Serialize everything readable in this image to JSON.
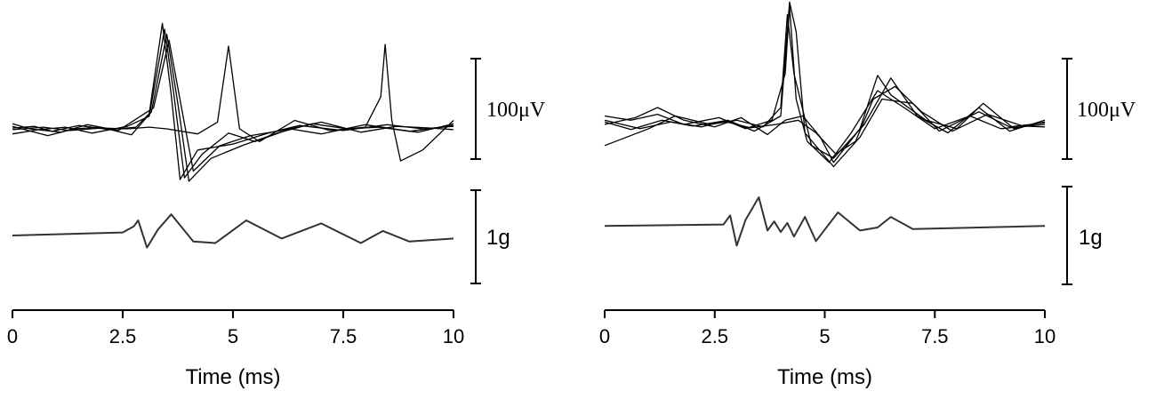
{
  "chart_data": [
    {
      "type": "line",
      "panel": "left",
      "xlabel": "Time (ms)",
      "xlim": [
        0,
        10
      ],
      "xticks": [
        "0",
        "2.5",
        "5",
        "7.5",
        "10"
      ],
      "scale_bars": {
        "voltage": "100μV",
        "accel": "1g"
      },
      "voltage_traces": [
        {
          "points": [
            [
              0,
              1
            ],
            [
              0.5,
              3
            ],
            [
              0.9,
              -3
            ],
            [
              1.5,
              4
            ],
            [
              2.2,
              -1
            ],
            [
              2.8,
              2
            ],
            [
              3.1,
              18
            ],
            [
              3.4,
              125
            ],
            [
              3.6,
              40
            ],
            [
              3.8,
              -60
            ],
            [
              4.2,
              -25
            ],
            [
              5,
              -18
            ],
            [
              5.8,
              -5
            ],
            [
              6.5,
              4
            ],
            [
              7.5,
              -2
            ],
            [
              8.5,
              5
            ],
            [
              9.3,
              0
            ],
            [
              10,
              3
            ]
          ]
        },
        {
          "points": [
            [
              0,
              -6
            ],
            [
              0.6,
              -1
            ],
            [
              1.2,
              2
            ],
            [
              1.8,
              -5
            ],
            [
              2.6,
              3
            ],
            [
              3.1,
              15
            ],
            [
              3.45,
              118
            ],
            [
              3.65,
              45
            ],
            [
              3.9,
              -58
            ],
            [
              4.3,
              -30
            ],
            [
              4.9,
              -5
            ],
            [
              5.5,
              -15
            ],
            [
              6.3,
              0
            ],
            [
              7,
              -6
            ],
            [
              8,
              5
            ],
            [
              9,
              -3
            ],
            [
              10,
              4
            ]
          ]
        },
        {
          "points": [
            [
              0,
              3
            ],
            [
              0.8,
              -8
            ],
            [
              1.4,
              0
            ],
            [
              2,
              2
            ],
            [
              2.7,
              -7
            ],
            [
              3.15,
              20
            ],
            [
              3.5,
              112
            ],
            [
              3.75,
              30
            ],
            [
              4,
              -62
            ],
            [
              4.5,
              -35
            ],
            [
              5.2,
              -20
            ],
            [
              6,
              -5
            ],
            [
              6.8,
              6
            ],
            [
              7.6,
              0
            ],
            [
              8.3,
              2
            ],
            [
              9.2,
              -4
            ],
            [
              10,
              6
            ]
          ]
        },
        {
          "points": [
            [
              0,
              6
            ],
            [
              0.4,
              0
            ],
            [
              1.1,
              -4
            ],
            [
              1.7,
              5
            ],
            [
              2.4,
              -2
            ],
            [
              3.2,
              25
            ],
            [
              3.55,
              105
            ],
            [
              3.85,
              20
            ],
            [
              4.1,
              -50
            ],
            [
              4.7,
              -20
            ],
            [
              5.4,
              -8
            ],
            [
              6.1,
              -2
            ],
            [
              7,
              8
            ],
            [
              7.9,
              -4
            ],
            [
              8.7,
              3
            ],
            [
              9.5,
              1
            ],
            [
              10,
              -1
            ]
          ]
        },
        {
          "points": [
            [
              0,
              -1
            ],
            [
              0.7,
              2
            ],
            [
              1.3,
              -2
            ],
            [
              2,
              1
            ],
            [
              2.6,
              0
            ],
            [
              3.1,
              2
            ],
            [
              3.5,
              0
            ],
            [
              4.2,
              -6
            ],
            [
              4.65,
              8
            ],
            [
              4.9,
              98
            ],
            [
              5.15,
              0
            ],
            [
              5.6,
              -15
            ],
            [
              6.4,
              10
            ],
            [
              7.2,
              -2
            ],
            [
              8,
              2
            ],
            [
              8.35,
              38
            ],
            [
              8.45,
              100
            ],
            [
              8.6,
              10
            ],
            [
              8.8,
              -38
            ],
            [
              9.3,
              -25
            ],
            [
              10,
              10
            ]
          ]
        }
      ],
      "accel_trace": {
        "points": [
          [
            0,
            0
          ],
          [
            2.5,
            0.02
          ],
          [
            2.75,
            0.06
          ],
          [
            2.85,
            0.1
          ],
          [
            3.05,
            -0.08
          ],
          [
            3.3,
            0.04
          ],
          [
            3.6,
            0.14
          ],
          [
            4.1,
            -0.04
          ],
          [
            4.6,
            -0.05
          ],
          [
            5.3,
            0.1
          ],
          [
            6.1,
            -0.02
          ],
          [
            7.0,
            0.08
          ],
          [
            7.9,
            -0.05
          ],
          [
            8.4,
            0.03
          ],
          [
            9.0,
            -0.04
          ],
          [
            10,
            -0.02
          ]
        ]
      }
    },
    {
      "type": "line",
      "panel": "right",
      "xlabel": "Time (ms)",
      "xlim": [
        0,
        10
      ],
      "xticks": [
        "0",
        "2.5",
        "5",
        "7.5",
        "10"
      ],
      "scale_bars": {
        "voltage": "100μV",
        "accel": "1g"
      },
      "voltage_traces": [
        {
          "points": [
            [
              0,
              10
            ],
            [
              0.6,
              5
            ],
            [
              1.2,
              12
            ],
            [
              1.8,
              0
            ],
            [
              2.6,
              8
            ],
            [
              3.2,
              -5
            ],
            [
              3.8,
              5
            ],
            [
              4.1,
              60
            ],
            [
              4.2,
              140
            ],
            [
              4.35,
              30
            ],
            [
              4.6,
              -20
            ],
            [
              5.1,
              -45
            ],
            [
              5.6,
              -10
            ],
            [
              6.2,
              40
            ],
            [
              6.8,
              20
            ],
            [
              7.5,
              -5
            ],
            [
              8.3,
              10
            ],
            [
              9,
              -5
            ],
            [
              10,
              0
            ]
          ]
        },
        {
          "points": [
            [
              0,
              5
            ],
            [
              0.8,
              -5
            ],
            [
              1.5,
              3
            ],
            [
              2.2,
              -3
            ],
            [
              2.8,
              5
            ],
            [
              3.4,
              -8
            ],
            [
              4.0,
              10
            ],
            [
              4.2,
              145
            ],
            [
              4.35,
              110
            ],
            [
              4.55,
              -10
            ],
            [
              5.2,
              -50
            ],
            [
              5.8,
              -15
            ],
            [
              6.3,
              30
            ],
            [
              7.0,
              25
            ],
            [
              7.6,
              -8
            ],
            [
              8.5,
              15
            ],
            [
              9.2,
              -3
            ],
            [
              10,
              2
            ]
          ]
        },
        {
          "points": [
            [
              0,
              -25
            ],
            [
              0.5,
              -15
            ],
            [
              1.0,
              -5
            ],
            [
              1.6,
              10
            ],
            [
              2.4,
              0
            ],
            [
              3.0,
              5
            ],
            [
              3.6,
              -3
            ],
            [
              4.0,
              20
            ],
            [
              4.15,
              130
            ],
            [
              4.3,
              60
            ],
            [
              4.7,
              -25
            ],
            [
              5.2,
              -40
            ],
            [
              5.9,
              0
            ],
            [
              6.5,
              55
            ],
            [
              7.1,
              10
            ],
            [
              7.8,
              -10
            ],
            [
              8.5,
              20
            ],
            [
              9.2,
              -8
            ],
            [
              10,
              5
            ]
          ]
        },
        {
          "points": [
            [
              0,
              0
            ],
            [
              0.7,
              8
            ],
            [
              1.2,
              20
            ],
            [
              1.8,
              5
            ],
            [
              2.5,
              -3
            ],
            [
              3.1,
              8
            ],
            [
              3.7,
              -12
            ],
            [
              4.1,
              5
            ],
            [
              4.5,
              10
            ],
            [
              4.9,
              -15
            ],
            [
              5.2,
              -45
            ],
            [
              5.8,
              -5
            ],
            [
              6.2,
              58
            ],
            [
              6.5,
              35
            ],
            [
              7.3,
              5
            ],
            [
              8.0,
              -5
            ],
            [
              8.6,
              25
            ],
            [
              9.3,
              -5
            ],
            [
              10,
              3
            ]
          ]
        },
        {
          "points": [
            [
              0,
              3
            ],
            [
              0.6,
              -6
            ],
            [
              1.3,
              5
            ],
            [
              2.0,
              -2
            ],
            [
              2.7,
              4
            ],
            [
              3.3,
              -4
            ],
            [
              3.9,
              0
            ],
            [
              4.4,
              5
            ],
            [
              4.8,
              -10
            ],
            [
              5.25,
              -35
            ],
            [
              5.7,
              -20
            ],
            [
              6.1,
              30
            ],
            [
              6.6,
              45
            ],
            [
              7.2,
              15
            ],
            [
              7.9,
              -8
            ],
            [
              8.7,
              12
            ],
            [
              9.5,
              -2
            ],
            [
              10,
              -3
            ]
          ]
        }
      ],
      "accel_trace": {
        "points": [
          [
            0,
            0.01
          ],
          [
            2.7,
            0.02
          ],
          [
            2.85,
            0.08
          ],
          [
            3.0,
            -0.12
          ],
          [
            3.2,
            0.05
          ],
          [
            3.5,
            0.2
          ],
          [
            3.7,
            -0.02
          ],
          [
            3.85,
            0.04
          ],
          [
            4.0,
            -0.03
          ],
          [
            4.15,
            0.03
          ],
          [
            4.3,
            -0.06
          ],
          [
            4.55,
            0.07
          ],
          [
            4.8,
            -0.09
          ],
          [
            5.3,
            0.1
          ],
          [
            5.8,
            -0.02
          ],
          [
            6.2,
            0.0
          ],
          [
            6.5,
            0.07
          ],
          [
            7.0,
            -0.01
          ],
          [
            10,
            0.01
          ]
        ]
      }
    }
  ]
}
